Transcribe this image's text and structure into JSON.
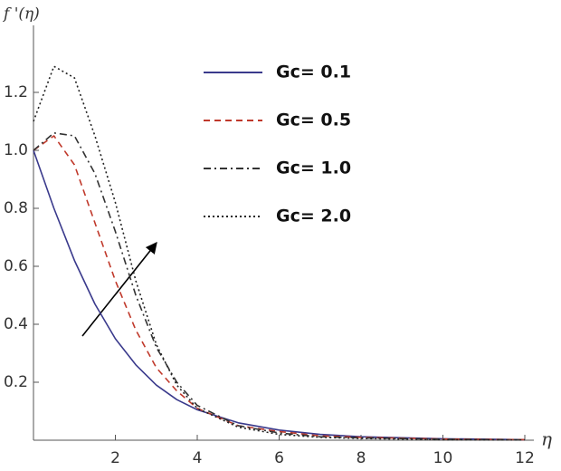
{
  "chart_data": {
    "type": "line",
    "y_label": "f '(η)",
    "x_label": "η",
    "x": [
      0,
      0.5,
      1,
      1.5,
      2,
      2.5,
      3,
      3.5,
      4,
      5,
      6,
      7,
      8,
      10,
      12
    ],
    "series": [
      {
        "name": "Gc= 0.1",
        "color": "#3a3a8c",
        "dash": "solid",
        "values": [
          1.0,
          0.8,
          0.62,
          0.47,
          0.35,
          0.26,
          0.19,
          0.14,
          0.105,
          0.06,
          0.035,
          0.02,
          0.012,
          0.005,
          0.002
        ]
      },
      {
        "name": "Gc= 0.5",
        "color": "#c0392b",
        "dash": "dashed",
        "values": [
          1.0,
          1.05,
          0.95,
          0.75,
          0.55,
          0.38,
          0.25,
          0.17,
          0.11,
          0.05,
          0.03,
          0.015,
          0.01,
          0.004,
          0.002
        ]
      },
      {
        "name": "Gc= 1.0",
        "color": "#333333",
        "dash": "dashdot",
        "values": [
          1.0,
          1.06,
          1.05,
          0.92,
          0.72,
          0.5,
          0.32,
          0.2,
          0.12,
          0.05,
          0.025,
          0.012,
          0.008,
          0.003,
          0.001
        ]
      },
      {
        "name": "Gc= 2.0",
        "color": "#222222",
        "dash": "dotted",
        "values": [
          1.1,
          1.29,
          1.25,
          1.05,
          0.82,
          0.55,
          0.33,
          0.19,
          0.11,
          0.045,
          0.02,
          0.01,
          0.006,
          0.002,
          0.001
        ]
      }
    ],
    "xlim": [
      0,
      12
    ],
    "ylim": [
      0,
      1.4
    ],
    "xticks": [
      2,
      4,
      6,
      8,
      10,
      12
    ],
    "yticks": [
      0.2,
      0.4,
      0.6,
      0.8,
      {
        "value": 1.0,
        "label": "1.0"
      },
      1.2
    ],
    "legend": "upper center"
  }
}
